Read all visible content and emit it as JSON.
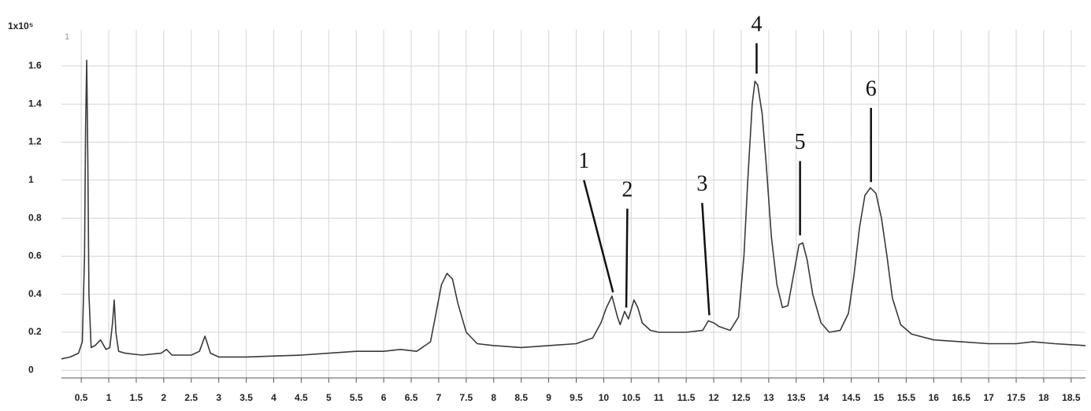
{
  "chart_data": {
    "type": "line",
    "y_label": "1x10⁵",
    "corner_label": "1",
    "color": "#3a3a3a",
    "grid": true,
    "x": [
      0.14,
      0.3,
      0.45,
      0.52,
      0.56,
      0.58,
      0.6,
      0.62,
      0.64,
      0.68,
      0.75,
      0.85,
      0.95,
      1.02,
      1.07,
      1.1,
      1.13,
      1.18,
      1.3,
      1.6,
      1.95,
      2.05,
      2.15,
      2.5,
      2.65,
      2.75,
      2.85,
      3.0,
      3.5,
      4.0,
      4.5,
      5.0,
      5.5,
      6.0,
      6.3,
      6.6,
      6.85,
      6.95,
      7.05,
      7.15,
      7.25,
      7.35,
      7.5,
      7.7,
      8.0,
      8.5,
      9.0,
      9.5,
      9.8,
      9.95,
      10.05,
      10.15,
      10.25,
      10.3,
      10.38,
      10.45,
      10.55,
      10.62,
      10.7,
      10.85,
      11.0,
      11.5,
      11.8,
      11.9,
      12.0,
      12.1,
      12.3,
      12.45,
      12.55,
      12.62,
      12.7,
      12.75,
      12.8,
      12.88,
      12.95,
      13.05,
      13.15,
      13.25,
      13.35,
      13.45,
      13.55,
      13.62,
      13.7,
      13.8,
      13.95,
      14.1,
      14.3,
      14.45,
      14.55,
      14.65,
      14.75,
      14.85,
      14.95,
      15.05,
      15.15,
      15.25,
      15.4,
      15.6,
      16.0,
      16.5,
      17.0,
      17.5,
      17.8,
      18.2,
      18.76
    ],
    "values": [
      0.06,
      0.07,
      0.09,
      0.15,
      0.6,
      1.3,
      1.63,
      1.1,
      0.4,
      0.12,
      0.13,
      0.16,
      0.11,
      0.12,
      0.25,
      0.37,
      0.2,
      0.1,
      0.09,
      0.08,
      0.09,
      0.11,
      0.08,
      0.08,
      0.1,
      0.18,
      0.09,
      0.07,
      0.07,
      0.075,
      0.08,
      0.09,
      0.1,
      0.1,
      0.11,
      0.1,
      0.15,
      0.3,
      0.45,
      0.51,
      0.48,
      0.35,
      0.2,
      0.14,
      0.13,
      0.12,
      0.13,
      0.14,
      0.17,
      0.25,
      0.33,
      0.39,
      0.28,
      0.24,
      0.31,
      0.27,
      0.37,
      0.33,
      0.25,
      0.21,
      0.2,
      0.2,
      0.21,
      0.26,
      0.25,
      0.23,
      0.21,
      0.28,
      0.6,
      1.0,
      1.4,
      1.52,
      1.5,
      1.35,
      1.1,
      0.7,
      0.45,
      0.33,
      0.34,
      0.5,
      0.66,
      0.67,
      0.58,
      0.4,
      0.25,
      0.2,
      0.21,
      0.3,
      0.5,
      0.75,
      0.92,
      0.96,
      0.93,
      0.8,
      0.6,
      0.38,
      0.24,
      0.19,
      0.16,
      0.15,
      0.14,
      0.14,
      0.15,
      0.14,
      0.13
    ],
    "xlim": [
      0.14,
      18.76
    ],
    "ylim": [
      -0.04,
      1.79
    ],
    "xticks": [
      0.5,
      1,
      1.5,
      2,
      2.5,
      3,
      3.5,
      4,
      4.5,
      5,
      5.5,
      6,
      6.5,
      7,
      7.5,
      8,
      8.5,
      9,
      9.5,
      10,
      10.5,
      11,
      11.5,
      12,
      12.5,
      13,
      13.5,
      14,
      14.5,
      15,
      15.5,
      16,
      16.5,
      17,
      17.5,
      18,
      18.5
    ],
    "yticks": [
      0,
      0.2,
      0.4,
      0.6,
      0.8,
      1,
      1.2,
      1.4,
      1.6
    ],
    "annotations": [
      {
        "text": "1",
        "x": [
          9.64,
          10.17
        ],
        "y": [
          1.0,
          0.41
        ]
      },
      {
        "text": "2",
        "x": [
          10.43,
          10.41
        ],
        "y": [
          0.85,
          0.33
        ]
      },
      {
        "text": "3",
        "x": [
          11.79,
          11.92
        ],
        "y": [
          0.88,
          0.29
        ]
      },
      {
        "text": "4",
        "x": [
          12.78,
          12.78
        ],
        "y": [
          1.72,
          1.56
        ]
      },
      {
        "text": "5",
        "x": [
          13.57,
          13.57
        ],
        "y": [
          1.1,
          0.71
        ]
      },
      {
        "text": "6",
        "x": [
          14.86,
          14.86
        ],
        "y": [
          1.38,
          0.99
        ]
      }
    ]
  }
}
